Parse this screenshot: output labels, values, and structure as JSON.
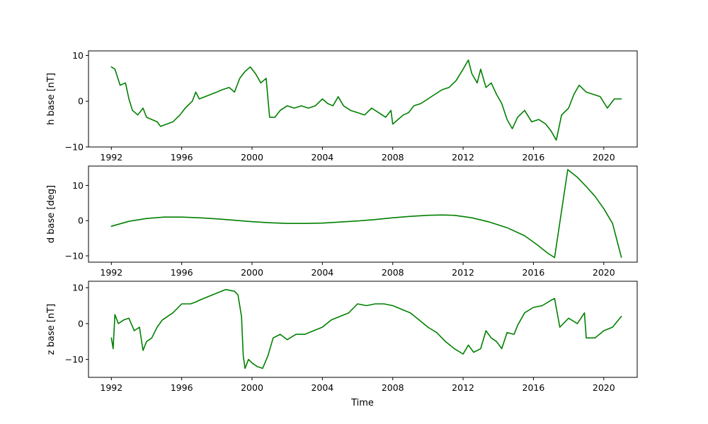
{
  "chart_data": [
    {
      "type": "line",
      "ylabel": "h base [nT]",
      "xlim": [
        1990.7,
        2021.9
      ],
      "ylim": [
        -10,
        11
      ],
      "xticks": [
        1992,
        1996,
        2000,
        2004,
        2008,
        2012,
        2016,
        2020
      ],
      "xticklabels": [
        "1992",
        "1996",
        "2000",
        "2004",
        "2008",
        "2012",
        "2016",
        "2020"
      ],
      "yticks": [
        -10,
        0,
        10
      ],
      "yticklabels": [
        "−10",
        "0",
        "10"
      ],
      "grid": false,
      "series": [
        {
          "color": "#008000",
          "x": [
            1992.0,
            1992.2,
            1992.5,
            1992.8,
            1993.0,
            1993.2,
            1993.5,
            1993.8,
            1994.0,
            1994.3,
            1994.6,
            1994.8,
            1995.5,
            1995.9,
            1996.2,
            1996.6,
            1996.8,
            1997.0,
            1998.0,
            1998.3,
            1998.7,
            1999.0,
            1999.3,
            1999.6,
            1999.9,
            2000.2,
            2000.5,
            2000.8,
            2001.0,
            2001.3,
            2001.6,
            2002.0,
            2002.4,
            2002.8,
            2003.2,
            2003.6,
            2004.0,
            2004.3,
            2004.6,
            2004.9,
            2005.2,
            2005.6,
            2006.0,
            2006.4,
            2006.8,
            2007.2,
            2007.6,
            2007.9,
            2008.0,
            2008.3,
            2008.6,
            2008.9,
            2009.2,
            2009.6,
            2010.0,
            2010.4,
            2010.8,
            2011.2,
            2011.6,
            2012.0,
            2012.3,
            2012.5,
            2012.8,
            2013.0,
            2013.3,
            2013.6,
            2013.9,
            2014.2,
            2014.5,
            2014.8,
            2015.1,
            2015.5,
            2015.9,
            2016.3,
            2016.7,
            2017.0,
            2017.3,
            2017.6,
            2018.0,
            2018.3,
            2018.6,
            2019.0,
            2019.4,
            2019.8,
            2020.2,
            2020.6,
            2021.0
          ],
          "y": [
            7.5,
            7.0,
            3.5,
            4.0,
            0.5,
            -2.0,
            -3.0,
            -1.5,
            -3.5,
            -4.0,
            -4.5,
            -5.5,
            -4.5,
            -3.0,
            -1.5,
            0.0,
            2.0,
            0.5,
            2.0,
            2.5,
            3.0,
            2.0,
            5.0,
            6.5,
            7.5,
            6.0,
            4.0,
            5.0,
            -3.5,
            -3.5,
            -2.0,
            -1.0,
            -1.5,
            -1.0,
            -1.5,
            -1.0,
            0.5,
            -0.5,
            -1.0,
            1.0,
            -1.0,
            -2.0,
            -2.5,
            -3.0,
            -1.5,
            -2.5,
            -3.5,
            -2.0,
            -5.0,
            -4.0,
            -3.0,
            -2.5,
            -1.0,
            -0.5,
            0.5,
            1.5,
            2.5,
            3.0,
            4.5,
            7.0,
            9.0,
            6.0,
            4.0,
            7.0,
            3.0,
            4.0,
            1.5,
            -0.5,
            -4.0,
            -6.0,
            -3.5,
            -2.0,
            -4.5,
            -4.0,
            -5.0,
            -6.5,
            -8.5,
            -3.0,
            -1.5,
            1.5,
            3.5,
            2.0,
            1.5,
            1.0,
            -1.5,
            0.5,
            0.5
          ]
        }
      ]
    },
    {
      "type": "line",
      "ylabel": "d base [deg]",
      "xlim": [
        1990.7,
        2021.9
      ],
      "ylim": [
        -11.8,
        15.5
      ],
      "xticks": [
        1992,
        1996,
        2000,
        2004,
        2008,
        2012,
        2016,
        2020
      ],
      "xticklabels": [
        "1992",
        "1996",
        "2000",
        "2004",
        "2008",
        "2012",
        "2016",
        "2020"
      ],
      "yticks": [
        -10,
        0,
        10
      ],
      "yticklabels": [
        "−10",
        "0",
        "10"
      ],
      "grid": false,
      "series": [
        {
          "color": "#008000",
          "x": [
            1992.0,
            1993.0,
            1994.0,
            1995.0,
            1996.0,
            1997.0,
            1998.0,
            1999.0,
            2000.0,
            2001.0,
            2002.0,
            2003.0,
            2004.0,
            2005.0,
            2006.0,
            2007.0,
            2008.0,
            2009.0,
            2010.0,
            2010.8,
            2011.5,
            2012.5,
            2013.5,
            2014.5,
            2015.5,
            2016.2,
            2016.8,
            2017.2,
            2017.95,
            2018.5,
            2019.0,
            2019.5,
            2020.0,
            2020.5,
            2021.0
          ],
          "y": [
            -1.6,
            -0.2,
            0.6,
            1.0,
            1.0,
            0.8,
            0.5,
            0.1,
            -0.3,
            -0.6,
            -0.8,
            -0.8,
            -0.7,
            -0.4,
            -0.1,
            0.3,
            0.8,
            1.2,
            1.5,
            1.6,
            1.5,
            0.8,
            -0.4,
            -2.0,
            -4.3,
            -6.8,
            -9.2,
            -10.5,
            14.5,
            12.3,
            9.7,
            6.9,
            3.4,
            -0.8,
            -10.4
          ]
        }
      ]
    },
    {
      "type": "line",
      "ylabel": "z base [nT]",
      "xlabel": "Time",
      "xlim": [
        1990.7,
        2021.9
      ],
      "ylim": [
        -15,
        11.8
      ],
      "xticks": [
        1992,
        1996,
        2000,
        2004,
        2008,
        2012,
        2016,
        2020
      ],
      "xticklabels": [
        "1992",
        "1996",
        "2000",
        "2004",
        "2008",
        "2012",
        "2016",
        "2020"
      ],
      "yticks": [
        -10,
        0,
        10
      ],
      "yticklabels": [
        "−10",
        "0",
        "10"
      ],
      "grid": false,
      "series": [
        {
          "color": "#008000",
          "x": [
            1992.0,
            1992.1,
            1992.2,
            1992.4,
            1992.7,
            1993.0,
            1993.3,
            1993.6,
            1993.8,
            1994.0,
            1994.3,
            1994.6,
            1994.9,
            1995.5,
            1996.0,
            1996.5,
            1996.8,
            1997.0,
            1998.0,
            1998.5,
            1999.0,
            1999.2,
            1999.4,
            1999.5,
            1999.6,
            1999.8,
            2000.0,
            2000.3,
            2000.6,
            2000.9,
            2001.2,
            2001.6,
            2002.0,
            2002.5,
            2003.0,
            2003.5,
            2004.0,
            2004.5,
            2005.0,
            2005.5,
            2006.0,
            2006.5,
            2007.0,
            2007.5,
            2008.0,
            2008.5,
            2009.0,
            2009.5,
            2010.0,
            2010.5,
            2011.0,
            2011.5,
            2012.0,
            2012.3,
            2012.6,
            2013.0,
            2013.3,
            2013.6,
            2013.9,
            2014.2,
            2014.5,
            2014.9,
            2015.1,
            2015.5,
            2016.0,
            2016.5,
            2017.0,
            2017.2,
            2017.5,
            2018.0,
            2018.5,
            2018.9,
            2019.0,
            2019.5,
            2020.0,
            2020.5,
            2021.0
          ],
          "y": [
            -4.0,
            -7.0,
            2.5,
            0.0,
            1.0,
            1.5,
            -2.0,
            -1.0,
            -7.5,
            -5.0,
            -4.0,
            -1.0,
            1.0,
            3.0,
            5.5,
            5.5,
            6.0,
            6.5,
            8.5,
            9.5,
            9.0,
            8.0,
            2.0,
            -9.0,
            -12.5,
            -10.0,
            -11.0,
            -12.0,
            -12.5,
            -9.0,
            -4.0,
            -3.0,
            -4.5,
            -3.0,
            -3.0,
            -2.0,
            -1.0,
            1.0,
            2.0,
            3.0,
            5.5,
            5.0,
            5.5,
            5.5,
            5.0,
            4.0,
            3.0,
            1.0,
            -1.0,
            -2.5,
            -5.0,
            -7.0,
            -8.5,
            -6.0,
            -8.0,
            -7.0,
            -2.0,
            -4.0,
            -5.0,
            -7.0,
            -2.5,
            -3.0,
            -0.5,
            3.0,
            4.5,
            5.0,
            6.5,
            7.0,
            -1.0,
            1.5,
            0.0,
            3.0,
            -4.0,
            -4.0,
            -2.0,
            -1.0,
            2.0
          ]
        }
      ]
    }
  ]
}
